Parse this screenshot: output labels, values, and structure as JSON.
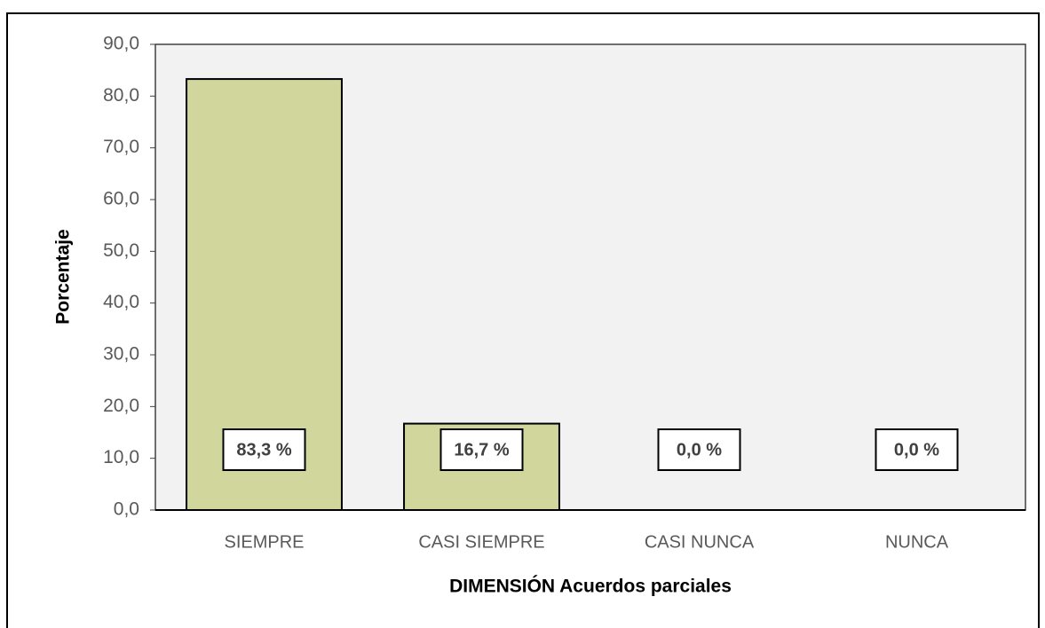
{
  "chart_data": {
    "type": "bar",
    "xlabel": "DIMENSIÓN Acuerdos parciales",
    "ylabel": "Porcentaje",
    "categories": [
      "SIEMPRE",
      "CASI SIEMPRE",
      "CASI NUNCA",
      "NUNCA"
    ],
    "values": [
      83.3,
      16.7,
      0.0,
      0.0
    ],
    "value_labels": [
      "83,3 %",
      "16,7 %",
      "0,0 %",
      "0,0 %"
    ],
    "color": "#d0d69c",
    "ylim": [
      0,
      90
    ],
    "yticks": [
      {
        "value": 0,
        "label": "0,0"
      },
      {
        "value": 10,
        "label": "10,0"
      },
      {
        "value": 20,
        "label": "20,0"
      },
      {
        "value": 30,
        "label": "30,0"
      },
      {
        "value": 40,
        "label": "40,0"
      },
      {
        "value": 50,
        "label": "50,0"
      },
      {
        "value": 60,
        "label": "60,0"
      },
      {
        "value": 70,
        "label": "70,0"
      },
      {
        "value": 80,
        "label": "80,0"
      },
      {
        "value": 90,
        "label": "90,0"
      }
    ],
    "grid": false
  }
}
